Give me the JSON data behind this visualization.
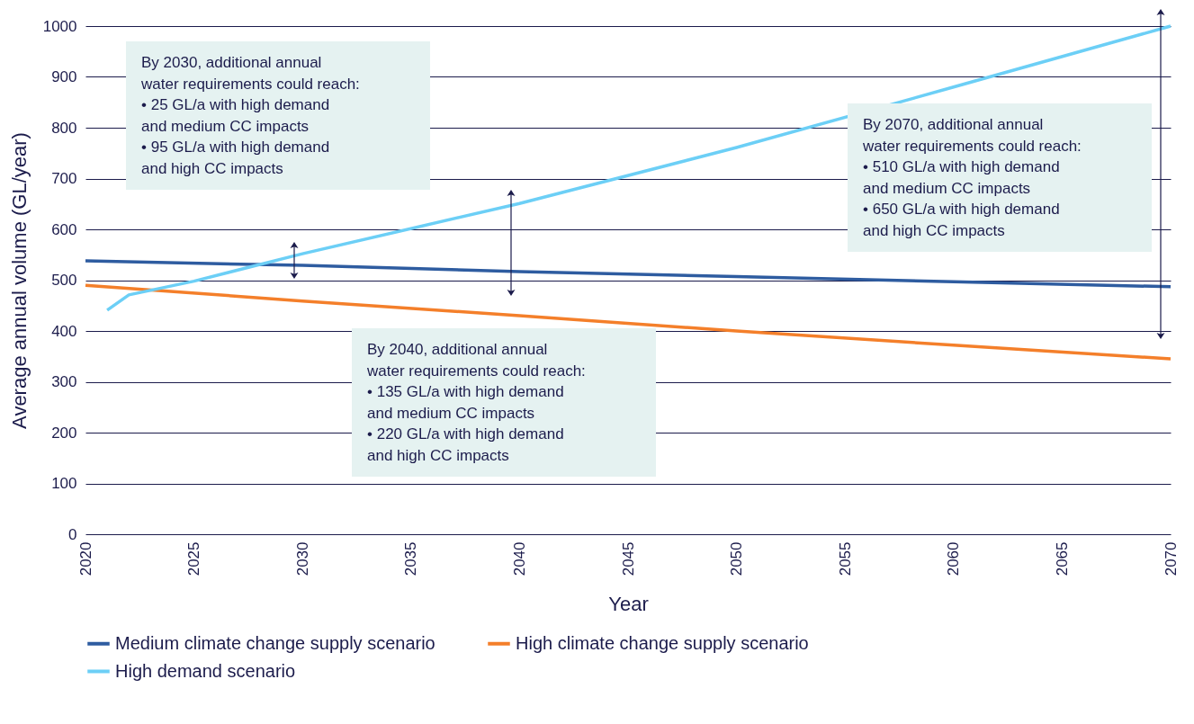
{
  "chart_data": {
    "type": "line",
    "xlabel": "Year",
    "ylabel": "Average annual volume (GL/year)",
    "x": [
      2020,
      2030,
      2040,
      2050,
      2060,
      2070
    ],
    "series": [
      {
        "name": "Medium climate change supply scenario",
        "color": "#2e5ca0",
        "values": [
          538,
          529,
          517,
          507,
          497,
          487
        ]
      },
      {
        "name": "High climate change supply scenario",
        "color": "#f47f2a",
        "values": [
          490,
          459,
          430,
          400,
          372,
          345
        ]
      },
      {
        "name": "High demand scenario",
        "color": "#6ccff6",
        "x": [
          2021,
          2022,
          2025,
          2030,
          2040,
          2050,
          2060,
          2070
        ],
        "values": [
          441,
          471,
          498,
          552,
          651,
          761,
          880,
          1000
        ]
      }
    ],
    "xlim": [
      2020,
      2070
    ],
    "xticks": [
      2020,
      2025,
      2030,
      2035,
      2040,
      2045,
      2050,
      2055,
      2060,
      2065,
      2070
    ],
    "ylim": [
      0,
      1000
    ],
    "yticks": [
      0,
      100,
      200,
      300,
      400,
      500,
      600,
      700,
      800,
      900,
      1000
    ],
    "grid": "y",
    "legend": "bottom",
    "line_style": "solid",
    "marker": "none",
    "annotations": [
      "By 2030, additional annual\nwater requirements could reach:\n• 25 GL/a with high demand\nand medium CC impacts\n• 95 GL/a with high demand\nand high CC impacts",
      "By 2040, additional annual\nwater requirements could reach:\n• 135 GL/a with high demand\nand medium CC impacts\n• 220 GL/a with high demand\nand high CC impacts",
      "By 2070, additional annual\nwater requirements could reach:\n• 510 GL/a with high demand\nand medium CC impacts\n• 650 GL/a with high demand\nand high CC impacts"
    ]
  }
}
